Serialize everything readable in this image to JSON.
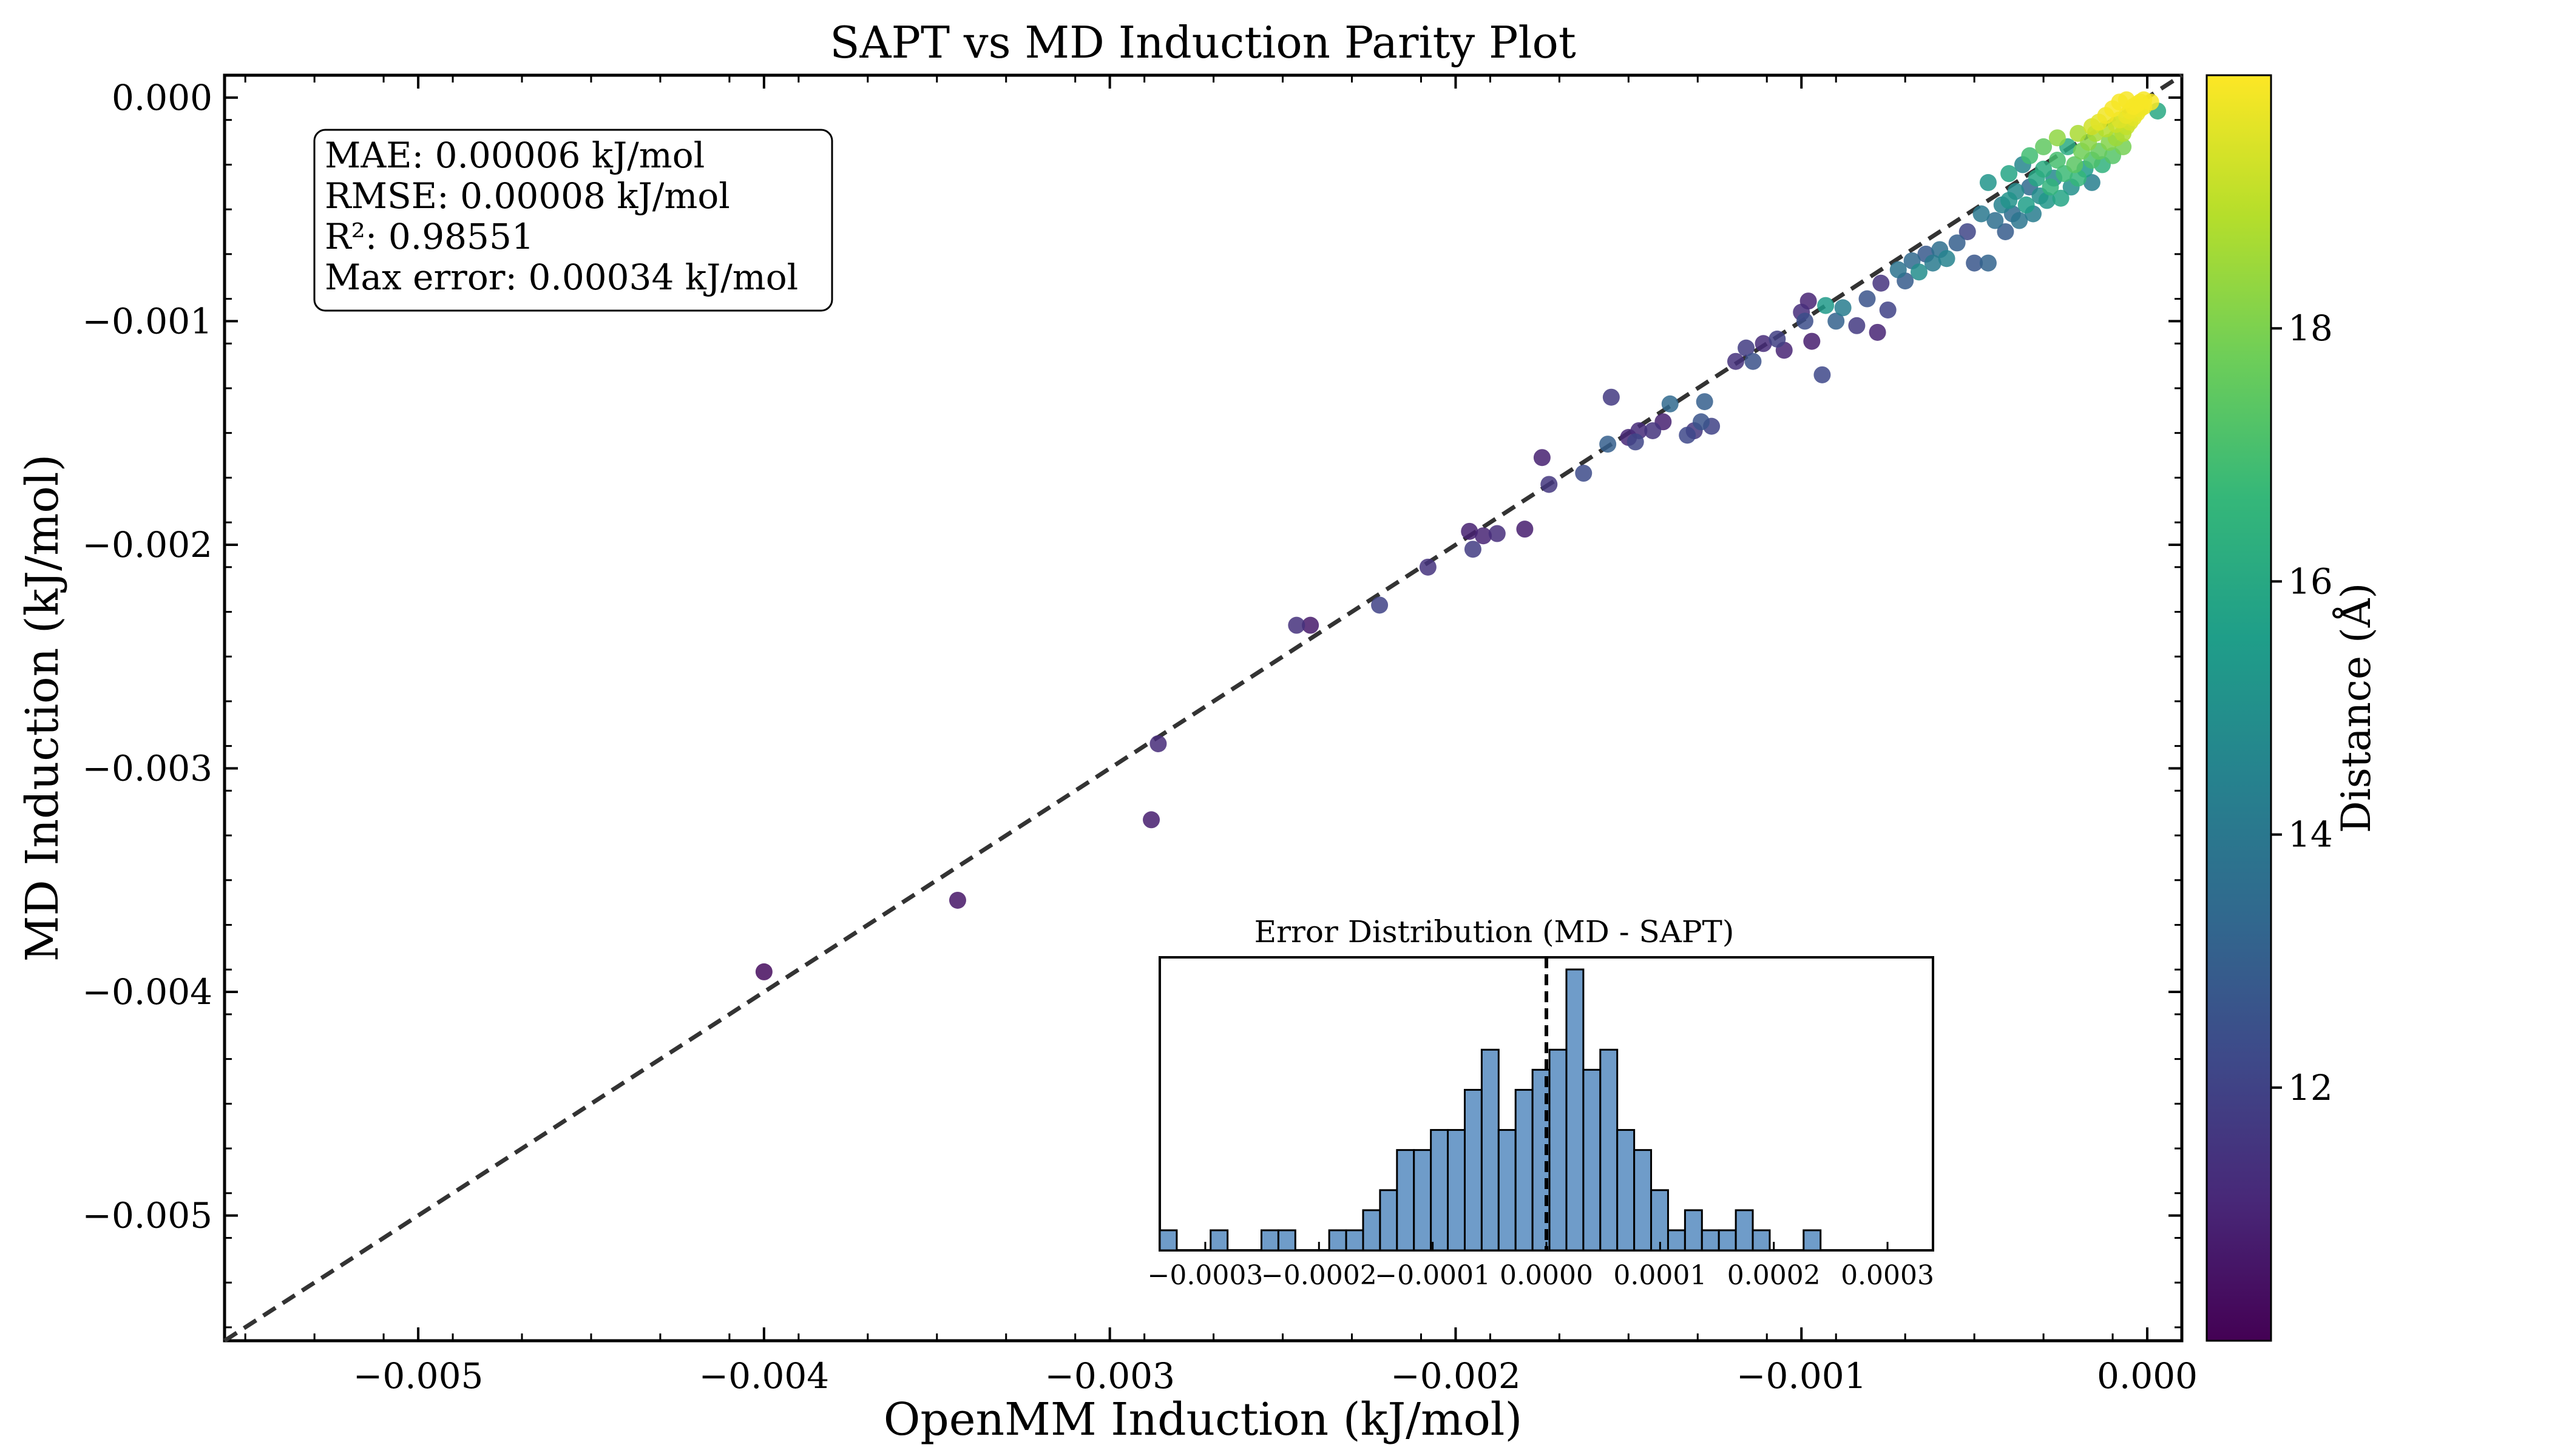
{
  "chart_data": [
    {
      "type": "scatter",
      "title": "SAPT vs MD Induction Parity Plot",
      "xlabel": "OpenMM Induction (kJ/mol)",
      "ylabel": "MD Induction (kJ/mol)",
      "xlim": [
        -0.00556,
        0.0001
      ],
      "ylim": [
        -0.00556,
        0.0001
      ],
      "xticks": [
        "−0.005",
        "−0.004",
        "−0.003",
        "−0.002",
        "−0.001",
        "0.000"
      ],
      "xtick_values": [
        -0.005,
        -0.004,
        -0.003,
        -0.002,
        -0.001,
        0.0
      ],
      "yticks": [
        "−0.005",
        "−0.004",
        "−0.003",
        "−0.002",
        "−0.001",
        "0.000"
      ],
      "ytick_values": [
        -0.005,
        -0.004,
        -0.003,
        -0.002,
        -0.001,
        0.0
      ],
      "parity_line": true,
      "colorbar": {
        "label": "Distance (Å)",
        "range": [
          10.0,
          20.0
        ],
        "ticks": [
          "12",
          "14",
          "16",
          "18"
        ],
        "tick_values": [
          12,
          14,
          16,
          18
        ],
        "colormap": [
          "#440154",
          "#482878",
          "#3e4989",
          "#31688e",
          "#26828e",
          "#1f9e89",
          "#35b779",
          "#6ece58",
          "#b5de2b",
          "#fde725"
        ]
      },
      "stats_box": [
        "MAE: 0.00006 kJ/mol",
        "RMSE: 0.00008 kJ/mol",
        "R²: 0.98551",
        "Max error: 0.00034 kJ/mol"
      ],
      "points": [
        {
          "x": -0.004,
          "y": -0.00391,
          "d": 10.3
        },
        {
          "x": -0.00344,
          "y": -0.00359,
          "d": 10.6
        },
        {
          "x": -0.00288,
          "y": -0.00323,
          "d": 10.8
        },
        {
          "x": -0.00286,
          "y": -0.00289,
          "d": 11.2
        },
        {
          "x": -0.00246,
          "y": -0.00236,
          "d": 11.4
        },
        {
          "x": -0.00242,
          "y": -0.00236,
          "d": 10.7
        },
        {
          "x": -0.00222,
          "y": -0.00227,
          "d": 12.0
        },
        {
          "x": -0.00208,
          "y": -0.0021,
          "d": 11.5
        },
        {
          "x": -0.00196,
          "y": -0.00194,
          "d": 10.9
        },
        {
          "x": -0.00195,
          "y": -0.00202,
          "d": 11.8
        },
        {
          "x": -0.00192,
          "y": -0.00196,
          "d": 11.0
        },
        {
          "x": -0.00188,
          "y": -0.00195,
          "d": 11.3
        },
        {
          "x": -0.0018,
          "y": -0.00193,
          "d": 10.8
        },
        {
          "x": -0.00175,
          "y": -0.00161,
          "d": 10.9
        },
        {
          "x": -0.00173,
          "y": -0.00173,
          "d": 11.6
        },
        {
          "x": -0.00163,
          "y": -0.00168,
          "d": 12.3
        },
        {
          "x": -0.00156,
          "y": -0.00155,
          "d": 13.0
        },
        {
          "x": -0.00155,
          "y": -0.00134,
          "d": 11.7
        },
        {
          "x": -0.0015,
          "y": -0.00152,
          "d": 11.1
        },
        {
          "x": -0.00148,
          "y": -0.00154,
          "d": 12.1
        },
        {
          "x": -0.00147,
          "y": -0.00149,
          "d": 11.2
        },
        {
          "x": -0.00143,
          "y": -0.00149,
          "d": 11.5
        },
        {
          "x": -0.0014,
          "y": -0.00145,
          "d": 10.9
        },
        {
          "x": -0.00138,
          "y": -0.00137,
          "d": 13.4
        },
        {
          "x": -0.00133,
          "y": -0.00151,
          "d": 12.2
        },
        {
          "x": -0.00131,
          "y": -0.00149,
          "d": 11.6
        },
        {
          "x": -0.00129,
          "y": -0.00145,
          "d": 12.6
        },
        {
          "x": -0.00128,
          "y": -0.00136,
          "d": 13.0
        },
        {
          "x": -0.00126,
          "y": -0.00147,
          "d": 12.0
        },
        {
          "x": -0.00119,
          "y": -0.00118,
          "d": 11.4
        },
        {
          "x": -0.00116,
          "y": -0.00112,
          "d": 11.8
        },
        {
          "x": -0.00114,
          "y": -0.00118,
          "d": 12.5
        },
        {
          "x": -0.00111,
          "y": -0.0011,
          "d": 11.2
        },
        {
          "x": -0.00107,
          "y": -0.00108,
          "d": 11.9
        },
        {
          "x": -0.00105,
          "y": -0.00113,
          "d": 11.0
        },
        {
          "x": -0.001,
          "y": -0.00096,
          "d": 11.3
        },
        {
          "x": -0.00099,
          "y": -0.001,
          "d": 12.4
        },
        {
          "x": -0.00098,
          "y": -0.00091,
          "d": 11.0
        },
        {
          "x": -0.00097,
          "y": -0.00109,
          "d": 10.8
        },
        {
          "x": -0.00094,
          "y": -0.00124,
          "d": 12.2
        },
        {
          "x": -0.00093,
          "y": -0.00093,
          "d": 15.4
        },
        {
          "x": -0.0009,
          "y": -0.001,
          "d": 13.1
        },
        {
          "x": -0.00088,
          "y": -0.00094,
          "d": 14.2
        },
        {
          "x": -0.00084,
          "y": -0.00102,
          "d": 11.7
        },
        {
          "x": -0.00081,
          "y": -0.0009,
          "d": 12.6
        },
        {
          "x": -0.00078,
          "y": -0.00105,
          "d": 11.0
        },
        {
          "x": -0.00077,
          "y": -0.00083,
          "d": 11.5
        },
        {
          "x": -0.00075,
          "y": -0.00095,
          "d": 12.0
        },
        {
          "x": -0.00072,
          "y": -0.00077,
          "d": 13.8
        },
        {
          "x": -0.0007,
          "y": -0.00082,
          "d": 12.9
        },
        {
          "x": -0.00068,
          "y": -0.00073,
          "d": 13.4
        },
        {
          "x": -0.00066,
          "y": -0.00078,
          "d": 14.9
        },
        {
          "x": -0.00064,
          "y": -0.0007,
          "d": 12.8
        },
        {
          "x": -0.00062,
          "y": -0.00074,
          "d": 14.1
        },
        {
          "x": -0.0006,
          "y": -0.00068,
          "d": 13.6
        },
        {
          "x": -0.00058,
          "y": -0.00072,
          "d": 14.5
        },
        {
          "x": -0.00055,
          "y": -0.00065,
          "d": 13.0
        },
        {
          "x": -0.00052,
          "y": -0.0006,
          "d": 12.1
        },
        {
          "x": -0.0005,
          "y": -0.00074,
          "d": 12.7
        },
        {
          "x": -0.00048,
          "y": -0.00052,
          "d": 14.0
        },
        {
          "x": -0.00046,
          "y": -0.00074,
          "d": 13.2
        },
        {
          "x": -0.00044,
          "y": -0.00055,
          "d": 13.6
        },
        {
          "x": -0.00042,
          "y": -0.00048,
          "d": 14.4
        },
        {
          "x": -0.00041,
          "y": -0.0006,
          "d": 12.9
        },
        {
          "x": -0.0004,
          "y": -0.00046,
          "d": 15.1
        },
        {
          "x": -0.00039,
          "y": -0.00052,
          "d": 13.5
        },
        {
          "x": -0.00038,
          "y": -0.00042,
          "d": 14.8
        },
        {
          "x": -0.00037,
          "y": -0.00055,
          "d": 13.9
        },
        {
          "x": -0.00036,
          "y": -0.0003,
          "d": 14.6
        },
        {
          "x": -0.00035,
          "y": -0.00048,
          "d": 15.6
        },
        {
          "x": -0.00034,
          "y": -0.0004,
          "d": 13.4
        },
        {
          "x": -0.00033,
          "y": -0.00052,
          "d": 14.2
        },
        {
          "x": -0.00032,
          "y": -0.00036,
          "d": 15.9
        },
        {
          "x": -0.00031,
          "y": -0.00044,
          "d": 14.9
        },
        {
          "x": -0.0003,
          "y": -0.00032,
          "d": 16.2
        },
        {
          "x": -0.00029,
          "y": -0.00046,
          "d": 15.3
        },
        {
          "x": -0.00028,
          "y": -0.0004,
          "d": 16.5
        },
        {
          "x": -0.00027,
          "y": -0.00036,
          "d": 14.7
        },
        {
          "x": -0.00026,
          "y": -0.00028,
          "d": 17.0
        },
        {
          "x": -0.00025,
          "y": -0.00045,
          "d": 15.8
        },
        {
          "x": -0.00024,
          "y": -0.00034,
          "d": 16.8
        },
        {
          "x": -0.00023,
          "y": -0.00022,
          "d": 16.1
        },
        {
          "x": -0.00022,
          "y": -0.0004,
          "d": 15.0
        },
        {
          "x": -0.00021,
          "y": -0.0003,
          "d": 17.4
        },
        {
          "x": -0.0002,
          "y": -0.00036,
          "d": 16.6
        },
        {
          "x": -0.00019,
          "y": -0.00024,
          "d": 17.8
        },
        {
          "x": -0.00018,
          "y": -0.00032,
          "d": 15.5
        },
        {
          "x": -0.00017,
          "y": -0.0002,
          "d": 18.2
        },
        {
          "x": -0.00016,
          "y": -0.00028,
          "d": 17.1
        },
        {
          "x": -0.00016,
          "y": -0.00038,
          "d": 14.3
        },
        {
          "x": -0.00015,
          "y": -0.00016,
          "d": 18.6
        },
        {
          "x": -0.00014,
          "y": -0.00024,
          "d": 17.6
        },
        {
          "x": -0.00013,
          "y": -0.0003,
          "d": 16.4
        },
        {
          "x": -0.00012,
          "y": -0.00014,
          "d": 18.9
        },
        {
          "x": -0.00011,
          "y": -0.0002,
          "d": 18.1
        },
        {
          "x": -0.0001,
          "y": -0.00026,
          "d": 17.3
        },
        {
          "x": -9e-05,
          "y": -0.00012,
          "d": 19.2
        },
        {
          "x": -9e-05,
          "y": -0.00018,
          "d": 18.5
        },
        {
          "x": -8e-05,
          "y": -0.0001,
          "d": 19.5
        },
        {
          "x": -7e-05,
          "y": -0.00016,
          "d": 18.8
        },
        {
          "x": -7e-05,
          "y": -0.00022,
          "d": 17.9
        },
        {
          "x": -6e-05,
          "y": -8e-05,
          "d": 19.7
        },
        {
          "x": -6e-05,
          "y": -0.00013,
          "d": 19.1
        },
        {
          "x": -5e-05,
          "y": -6e-05,
          "d": 19.8
        },
        {
          "x": -5e-05,
          "y": -0.00011,
          "d": 19.4
        },
        {
          "x": -4e-05,
          "y": -4e-05,
          "d": 19.9
        },
        {
          "x": -4e-05,
          "y": -9e-05,
          "d": 19.6
        },
        {
          "x": -3e-05,
          "y": -3e-05,
          "d": 19.9
        },
        {
          "x": -3e-05,
          "y": -7e-05,
          "d": 19.7
        },
        {
          "x": -2e-05,
          "y": -2e-05,
          "d": 19.9
        },
        {
          "x": -2e-05,
          "y": -5e-05,
          "d": 19.8
        },
        {
          "x": -1e-05,
          "y": -1e-05,
          "d": 19.9
        },
        {
          "x": -1e-05,
          "y": -4e-05,
          "d": 19.8
        },
        {
          "x": -0.0001,
          "y": -5e-05,
          "d": 19.9
        },
        {
          "x": -0.00012,
          "y": -8e-05,
          "d": 19.8
        },
        {
          "x": -0.00014,
          "y": -0.00011,
          "d": 19.6
        },
        {
          "x": -0.00016,
          "y": -0.00013,
          "d": 19.3
        },
        {
          "x": -0.0002,
          "y": -0.00016,
          "d": 18.7
        },
        {
          "x": -8e-05,
          "y": -2e-05,
          "d": 19.9
        },
        {
          "x": -6e-05,
          "y": -1e-05,
          "d": 19.9
        },
        {
          "x": 1e-05,
          "y": -2e-05,
          "d": 19.9
        },
        {
          "x": 3e-05,
          "y": -6e-05,
          "d": 16.0
        },
        {
          "x": -0.00026,
          "y": -0.00018,
          "d": 18.3
        },
        {
          "x": -0.0003,
          "y": -0.00022,
          "d": 17.5
        },
        {
          "x": -0.00034,
          "y": -0.00026,
          "d": 16.9
        },
        {
          "x": -0.0004,
          "y": -0.00034,
          "d": 15.8
        },
        {
          "x": -0.00046,
          "y": -0.00038,
          "d": 15.2
        }
      ]
    },
    {
      "type": "bar",
      "title": "Error Distribution (MD - SAPT)",
      "xlim": [
        -0.00034,
        0.00034
      ],
      "xticks": [
        "−0.0003",
        "−0.0002",
        "−0.0001",
        "0.0000",
        "0.0001",
        "0.0002",
        "0.0003"
      ],
      "xtick_values": [
        -0.0003,
        -0.0002,
        -0.0001,
        0.0,
        0.0001,
        0.0002,
        0.0003
      ],
      "bin_start": -0.00034,
      "bin_width": 1.49e-05,
      "counts": [
        1,
        0,
        0,
        1,
        0,
        0,
        1,
        1,
        0,
        0,
        1,
        1,
        2,
        3,
        5,
        5,
        6,
        6,
        8,
        10,
        6,
        8,
        9,
        10,
        14,
        9,
        10,
        6,
        5,
        3,
        1,
        2,
        1,
        1,
        2,
        1,
        0,
        0,
        1,
        0,
        0,
        0
      ],
      "zero_line": 0.0,
      "bar_color": "#6f9cc9"
    }
  ]
}
